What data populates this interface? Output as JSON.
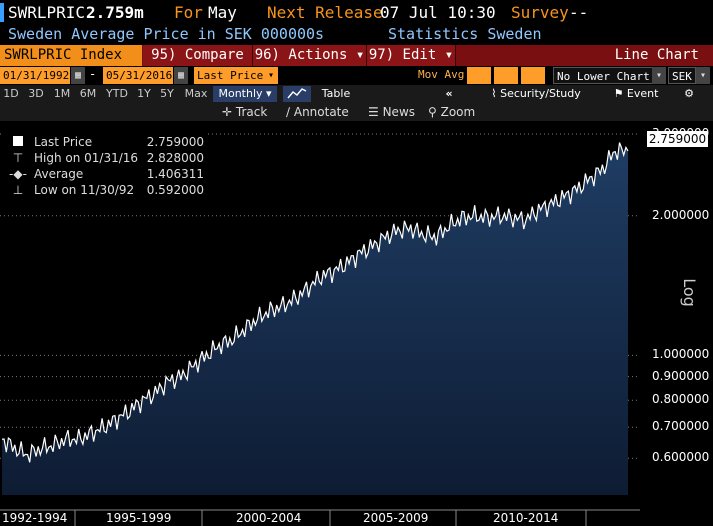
{
  "header": {
    "ticker": "SWRLPRIC",
    "last": "2.759m",
    "for_label": "For",
    "for_value": "May",
    "next_release_label": "Next Release",
    "next_release_value": "07 Jul 10:30",
    "survey_label": "Survey",
    "survey_value": "--",
    "description": "Sweden Average Price in SEK 000000s",
    "source": "Statistics Sweden"
  },
  "menubar": {
    "index_label": "SWRLPRIC Index",
    "compare": "95) Compare",
    "actions": "96) Actions ▾",
    "edit": "97) Edit ▾",
    "chart_type": "Line Chart"
  },
  "controls": {
    "start_date": "01/31/1992",
    "dash": "-",
    "end_date": "05/31/2016",
    "field": "Last Price",
    "mov_avg": "Mov Avg",
    "lower_chart": "No Lower Chart",
    "currency": "SEK"
  },
  "periods": [
    "1D",
    "3D",
    "1M",
    "6M",
    "YTD",
    "1Y",
    "5Y",
    "Max"
  ],
  "frequency": "Monthly ▾",
  "table_label": "Table",
  "security_study": "Security/Study",
  "event": "Event",
  "tools": {
    "track": "Track",
    "annotate": "Annotate",
    "news": "News",
    "zoom": "Zoom"
  },
  "icons": {
    "calendar": "calendar-icon",
    "dropdown": "chevron-down-icon",
    "chart": "line-chart-icon",
    "back": "double-chevron-left-icon",
    "security": "line-chart-icon",
    "flag": "flag-icon",
    "gear": "gear-icon",
    "crosshair": "crosshair-icon",
    "pencil": "pencil-icon",
    "news": "news-icon",
    "zoom": "zoom-icon"
  },
  "colors": {
    "accent_orange": "#f7941d",
    "menu_red": "#7a0f11",
    "area_fill": "#1b3557",
    "line": "#ffffff",
    "text_blue": "#8ec8ff"
  },
  "legend": [
    {
      "name": "Last Price",
      "value": "2.759000"
    },
    {
      "name": "High on 01/31/16",
      "value": "2.828000"
    },
    {
      "name": "Average",
      "value": "1.406311"
    },
    {
      "name": "Low on 11/30/92",
      "value": "0.592000"
    }
  ],
  "y_axis_label": "Log",
  "last_value_box": "2.759000",
  "chart_data": {
    "type": "area",
    "title": "",
    "xlabel": "",
    "ylabel": "Log",
    "scale": "log",
    "ylim": [
      0.5,
      3.2
    ],
    "y_ticks": [
      {
        "value": 3.0,
        "label": "3.000000"
      },
      {
        "value": 2.0,
        "label": "2.000000"
      },
      {
        "value": 1.0,
        "label": "1.000000"
      },
      {
        "value": 0.9,
        "label": "0.900000"
      },
      {
        "value": 0.8,
        "label": "0.800000"
      },
      {
        "value": 0.7,
        "label": "0.700000"
      },
      {
        "value": 0.6,
        "label": "0.600000"
      }
    ],
    "x_ticks": [
      "1992-1994",
      "1995-1999",
      "2000-2004",
      "2005-2009",
      "2010-2014"
    ],
    "x": [
      "1992-01",
      "1992-07",
      "1993-01",
      "1993-07",
      "1994-01",
      "1994-07",
      "1995-01",
      "1995-07",
      "1996-01",
      "1996-07",
      "1997-01",
      "1997-07",
      "1998-01",
      "1998-07",
      "1999-01",
      "1999-07",
      "2000-01",
      "2000-07",
      "2001-01",
      "2001-07",
      "2002-01",
      "2002-07",
      "2003-01",
      "2003-07",
      "2004-01",
      "2004-07",
      "2005-01",
      "2005-07",
      "2006-01",
      "2006-07",
      "2007-01",
      "2007-07",
      "2008-01",
      "2008-07",
      "2009-01",
      "2009-07",
      "2010-01",
      "2010-07",
      "2011-01",
      "2011-07",
      "2012-01",
      "2012-07",
      "2013-01",
      "2013-07",
      "2014-01",
      "2014-07",
      "2015-01",
      "2015-07",
      "2016-01",
      "2016-05"
    ],
    "series": [
      {
        "name": "Last Price",
        "values": [
          0.66,
          0.63,
          0.61,
          0.63,
          0.64,
          0.66,
          0.66,
          0.68,
          0.7,
          0.73,
          0.76,
          0.8,
          0.83,
          0.88,
          0.9,
          0.95,
          1.0,
          1.05,
          1.08,
          1.14,
          1.2,
          1.25,
          1.28,
          1.33,
          1.4,
          1.48,
          1.52,
          1.58,
          1.66,
          1.72,
          1.8,
          1.86,
          1.88,
          1.82,
          1.8,
          1.9,
          1.98,
          2.0,
          1.98,
          2.0,
          1.98,
          1.96,
          2.06,
          2.12,
          2.2,
          2.28,
          2.4,
          2.52,
          2.76,
          2.759
        ]
      }
    ]
  }
}
